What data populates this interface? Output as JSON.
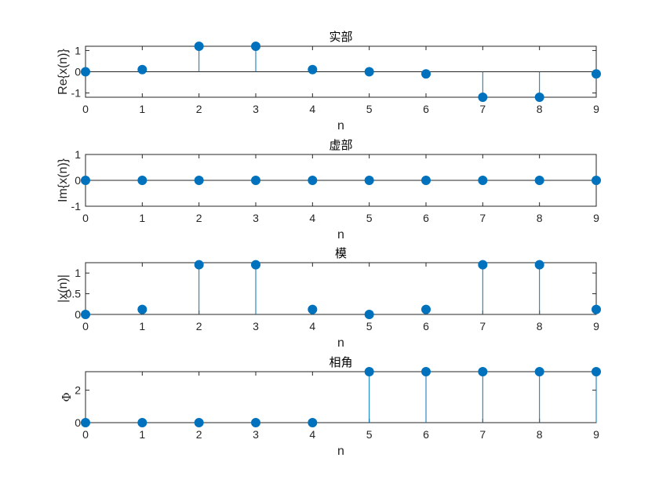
{
  "chart_data": [
    {
      "type": "stem",
      "title": "实部",
      "xlabel": "n",
      "ylabel": "Re{x(n)}",
      "x": [
        0,
        1,
        2,
        3,
        4,
        5,
        6,
        7,
        8,
        9
      ],
      "values": [
        0,
        0.1,
        1.2,
        1.2,
        0.1,
        0,
        -0.1,
        -1.2,
        -1.2,
        -0.1
      ],
      "xlim": [
        0,
        9
      ],
      "ylim": [
        -1.2,
        1.2
      ],
      "xticks": [
        0,
        1,
        2,
        3,
        4,
        5,
        6,
        7,
        8,
        9
      ],
      "yticks": [
        -1,
        0,
        1
      ],
      "grid": false
    },
    {
      "type": "stem",
      "title": "虚部",
      "xlabel": "n",
      "ylabel": "Im{x(n)}",
      "x": [
        0,
        1,
        2,
        3,
        4,
        5,
        6,
        7,
        8,
        9
      ],
      "values": [
        0,
        0,
        0,
        0,
        0,
        0,
        0,
        0,
        0,
        0
      ],
      "xlim": [
        0,
        9
      ],
      "ylim": [
        -1,
        1
      ],
      "xticks": [
        0,
        1,
        2,
        3,
        4,
        5,
        6,
        7,
        8,
        9
      ],
      "yticks": [
        -1,
        0,
        1
      ],
      "grid": false
    },
    {
      "type": "stem",
      "title": "模",
      "xlabel": "n",
      "ylabel": "|x(n)|",
      "x": [
        0,
        1,
        2,
        3,
        4,
        5,
        6,
        7,
        8,
        9
      ],
      "values": [
        0,
        0.12,
        1.2,
        1.2,
        0.12,
        0,
        0.12,
        1.2,
        1.2,
        0.12
      ],
      "xlim": [
        0,
        9
      ],
      "ylim": [
        0,
        1.25
      ],
      "xticks": [
        0,
        1,
        2,
        3,
        4,
        5,
        6,
        7,
        8,
        9
      ],
      "yticks": [
        0,
        0.5,
        1
      ],
      "grid": false
    },
    {
      "type": "stem",
      "title": "相角",
      "xlabel": "n",
      "ylabel": "Φ",
      "x": [
        0,
        1,
        2,
        3,
        4,
        5,
        6,
        7,
        8,
        9
      ],
      "values": [
        0,
        0,
        0,
        0,
        0,
        3.1416,
        3.1416,
        3.1416,
        3.1416,
        3.1416
      ],
      "xlim": [
        0,
        9
      ],
      "ylim": [
        0,
        3.1416
      ],
      "xticks": [
        0,
        1,
        2,
        3,
        4,
        5,
        6,
        7,
        8,
        9
      ],
      "yticks": [
        0,
        2
      ],
      "grid": false
    }
  ],
  "colors": {
    "series": "#0072BD",
    "axes": "#262626",
    "background": "#ffffff"
  }
}
